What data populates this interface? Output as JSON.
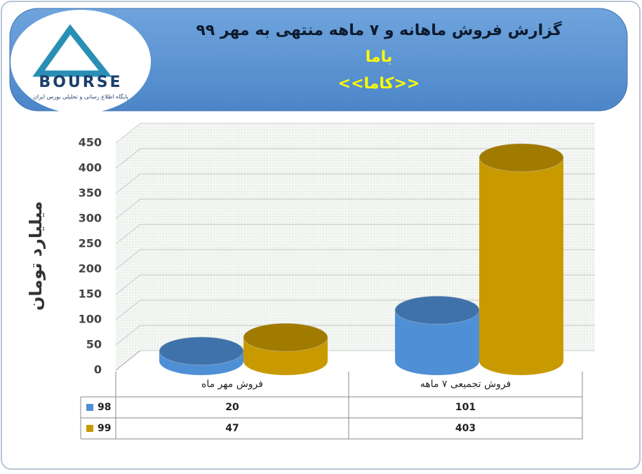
{
  "chart_data": {
    "type": "bar",
    "title": "گزارش فروش ماهانه و ۷ ماهه منتهی به مهر ۹۹",
    "subtitle": "باما",
    "subtitle2": "<<کاما>>",
    "logo_text": "BOURSE",
    "logo_caption": "پایگاه اطلاع رسانی و تحلیلی بورس ایران",
    "y_label": "میلیارد تومان",
    "categories": [
      "فروش مهر  ماه",
      "فروش تجمیعی ۷ ماهه"
    ],
    "series": [
      {
        "name": "98",
        "color": "#4f8fd6",
        "values": [
          20,
          101
        ]
      },
      {
        "name": "99",
        "color": "#c99a00",
        "values": [
          47,
          403
        ]
      }
    ],
    "ylim": [
      0,
      450
    ],
    "yticks": [
      0,
      50,
      100,
      150,
      200,
      250,
      300,
      350,
      400,
      450
    ],
    "grid": true
  }
}
